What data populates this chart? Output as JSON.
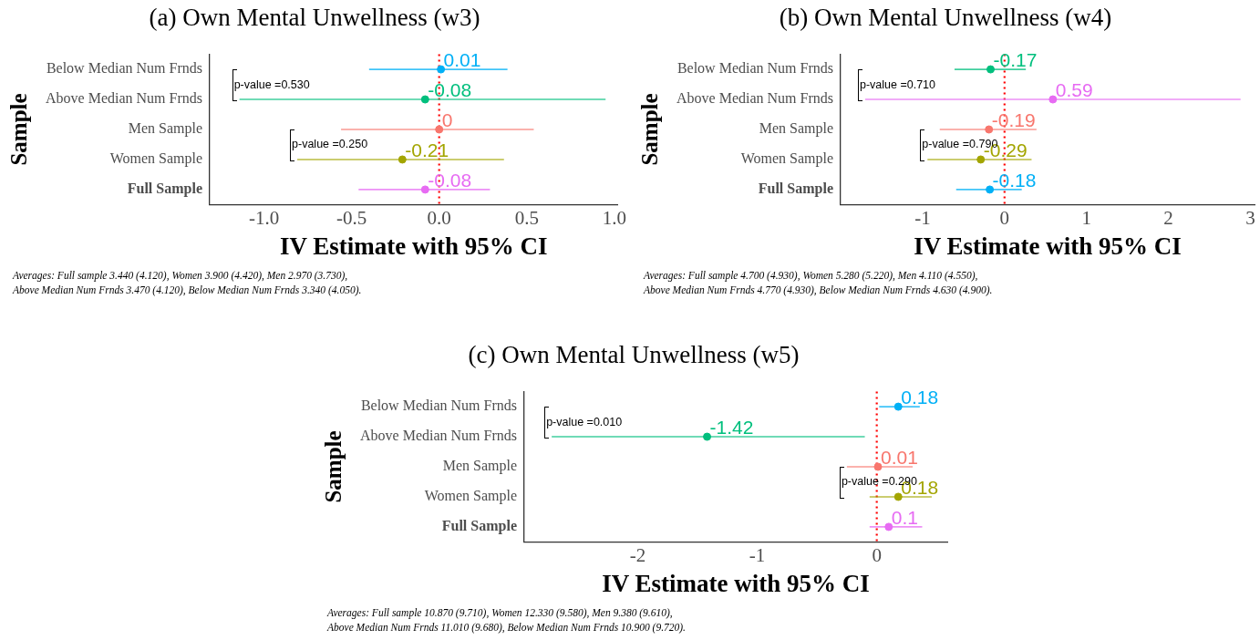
{
  "chart_data": [
    {
      "type": "scatter",
      "orientation": "horizontal",
      "title": "(a) Own Mental Unwellness (w3)",
      "xlabel": "IV Estimate with 95% CI",
      "ylabel": "Sample",
      "legend": false,
      "marker": "circle",
      "categories": [
        "Below Median Num Frnds",
        "Above Median Num Frnds",
        "Men Sample",
        "Women Sample",
        "Full Sample"
      ],
      "values": [
        0.01,
        -0.08,
        0,
        -0.21,
        -0.08
      ],
      "colors": [
        "#00b0f6",
        "#00bf7d",
        "#f8766d",
        "#a3a500",
        "#e76bf3"
      ],
      "errors": [
        [
          -0.4,
          0.39
        ],
        [
          -1.14,
          0.95
        ],
        [
          -0.56,
          0.54
        ],
        [
          -0.81,
          0.37
        ],
        [
          -0.46,
          0.29
        ]
      ],
      "value_labels": [
        "0.01",
        "-0.08",
        "0",
        "-0.21",
        "-0.08"
      ],
      "xlim": [
        -1.31,
        1.02
      ],
      "xticks": [
        {
          "value": -1,
          "label": "-1.0"
        },
        {
          "value": -0.5,
          "label": "-0.5"
        },
        {
          "value": 0,
          "label": "0.0"
        },
        {
          "value": 0.5,
          "label": "0.5"
        },
        {
          "value": 1,
          "label": "1.0"
        }
      ],
      "ref_lines": [
        {
          "axis": "x",
          "value": 0,
          "color": "#ff0000",
          "line_style": "dotted"
        }
      ],
      "annotations": [
        "p-value =0.530",
        "p-value =0.250",
        "Averages: Full sample 3.440 (4.120), Women 3.900 (4.420), Men 2.970 (3.730),\nAbove Median Num Frnds 3.470 (4.120), Below Median Num Frnds 3.340 (4.050)."
      ]
    },
    {
      "type": "scatter",
      "orientation": "horizontal",
      "title": "(b) Own Mental Unwellness (w4)",
      "xlabel": "IV Estimate with 95% CI",
      "ylabel": "Sample",
      "legend": false,
      "marker": "circle",
      "categories": [
        "Below Median Num Frnds",
        "Above Median Num Frnds",
        "Men Sample",
        "Women Sample",
        "Full Sample"
      ],
      "values": [
        -0.17,
        0.59,
        -0.19,
        -0.29,
        -0.18
      ],
      "colors": [
        "#00bf7d",
        "#e76bf3",
        "#f8766d",
        "#a3a500",
        "#00b0f6"
      ],
      "errors": [
        [
          -0.61,
          0.26
        ],
        [
          -1.7,
          2.88
        ],
        [
          -0.79,
          0.39
        ],
        [
          -0.94,
          0.33
        ],
        [
          -0.59,
          0.21
        ]
      ],
      "value_labels": [
        "-0.17",
        "0.59",
        "-0.19",
        "-0.29",
        "-0.18"
      ],
      "xlim": [
        -2.0,
        3.05
      ],
      "xticks": [
        -1,
        0,
        1,
        2,
        3
      ],
      "ref_lines": [
        {
          "axis": "x",
          "value": 0,
          "color": "#ff0000",
          "line_style": "dotted"
        }
      ],
      "annotations": [
        "p-value =0.710",
        "p-value =0.790",
        "Averages: Full sample 4.700 (4.930), Women 5.280 (5.220), Men 4.110 (4.550),\nAbove Median Num Frnds 4.770 (4.930), Below Median Num Frnds 4.630 (4.900)."
      ]
    },
    {
      "type": "scatter",
      "orientation": "horizontal",
      "title": "(c) Own Mental Unwellness (w5)",
      "xlabel": "IV Estimate with 95% CI",
      "ylabel": "Sample",
      "legend": false,
      "marker": "circle",
      "categories": [
        "Below Median Num Frnds",
        "Above Median Num Frnds",
        "Men Sample",
        "Women Sample",
        "Full Sample"
      ],
      "values": [
        0.18,
        -1.42,
        0.01,
        0.18,
        0.1
      ],
      "colors": [
        "#00b0f6",
        "#00bf7d",
        "#f8766d",
        "#a3a500",
        "#e76bf3"
      ],
      "errors": [
        [
          0.02,
          0.36
        ],
        [
          -2.72,
          -0.1
        ],
        [
          -0.25,
          0.3
        ],
        [
          -0.06,
          0.46
        ],
        [
          -0.06,
          0.38
        ]
      ],
      "value_labels": [
        "0.18",
        "-1.42",
        "0.01",
        "0.18",
        "0.1"
      ],
      "xlim": [
        -2.95,
        0.59
      ],
      "xticks": [
        -2,
        -1,
        0
      ],
      "ref_lines": [
        {
          "axis": "x",
          "value": 0,
          "color": "#ff0000",
          "line_style": "dotted"
        }
      ],
      "annotations": [
        "p-value =0.010",
        "p-value =0.290",
        "Averages: Full sample 10.870 (9.710), Women 12.330 (9.580), Men 9.380 (9.610),\nAbove Median Num Frnds 11.010 (9.680), Below Median Num Frnds 10.900 (9.720)."
      ]
    }
  ]
}
